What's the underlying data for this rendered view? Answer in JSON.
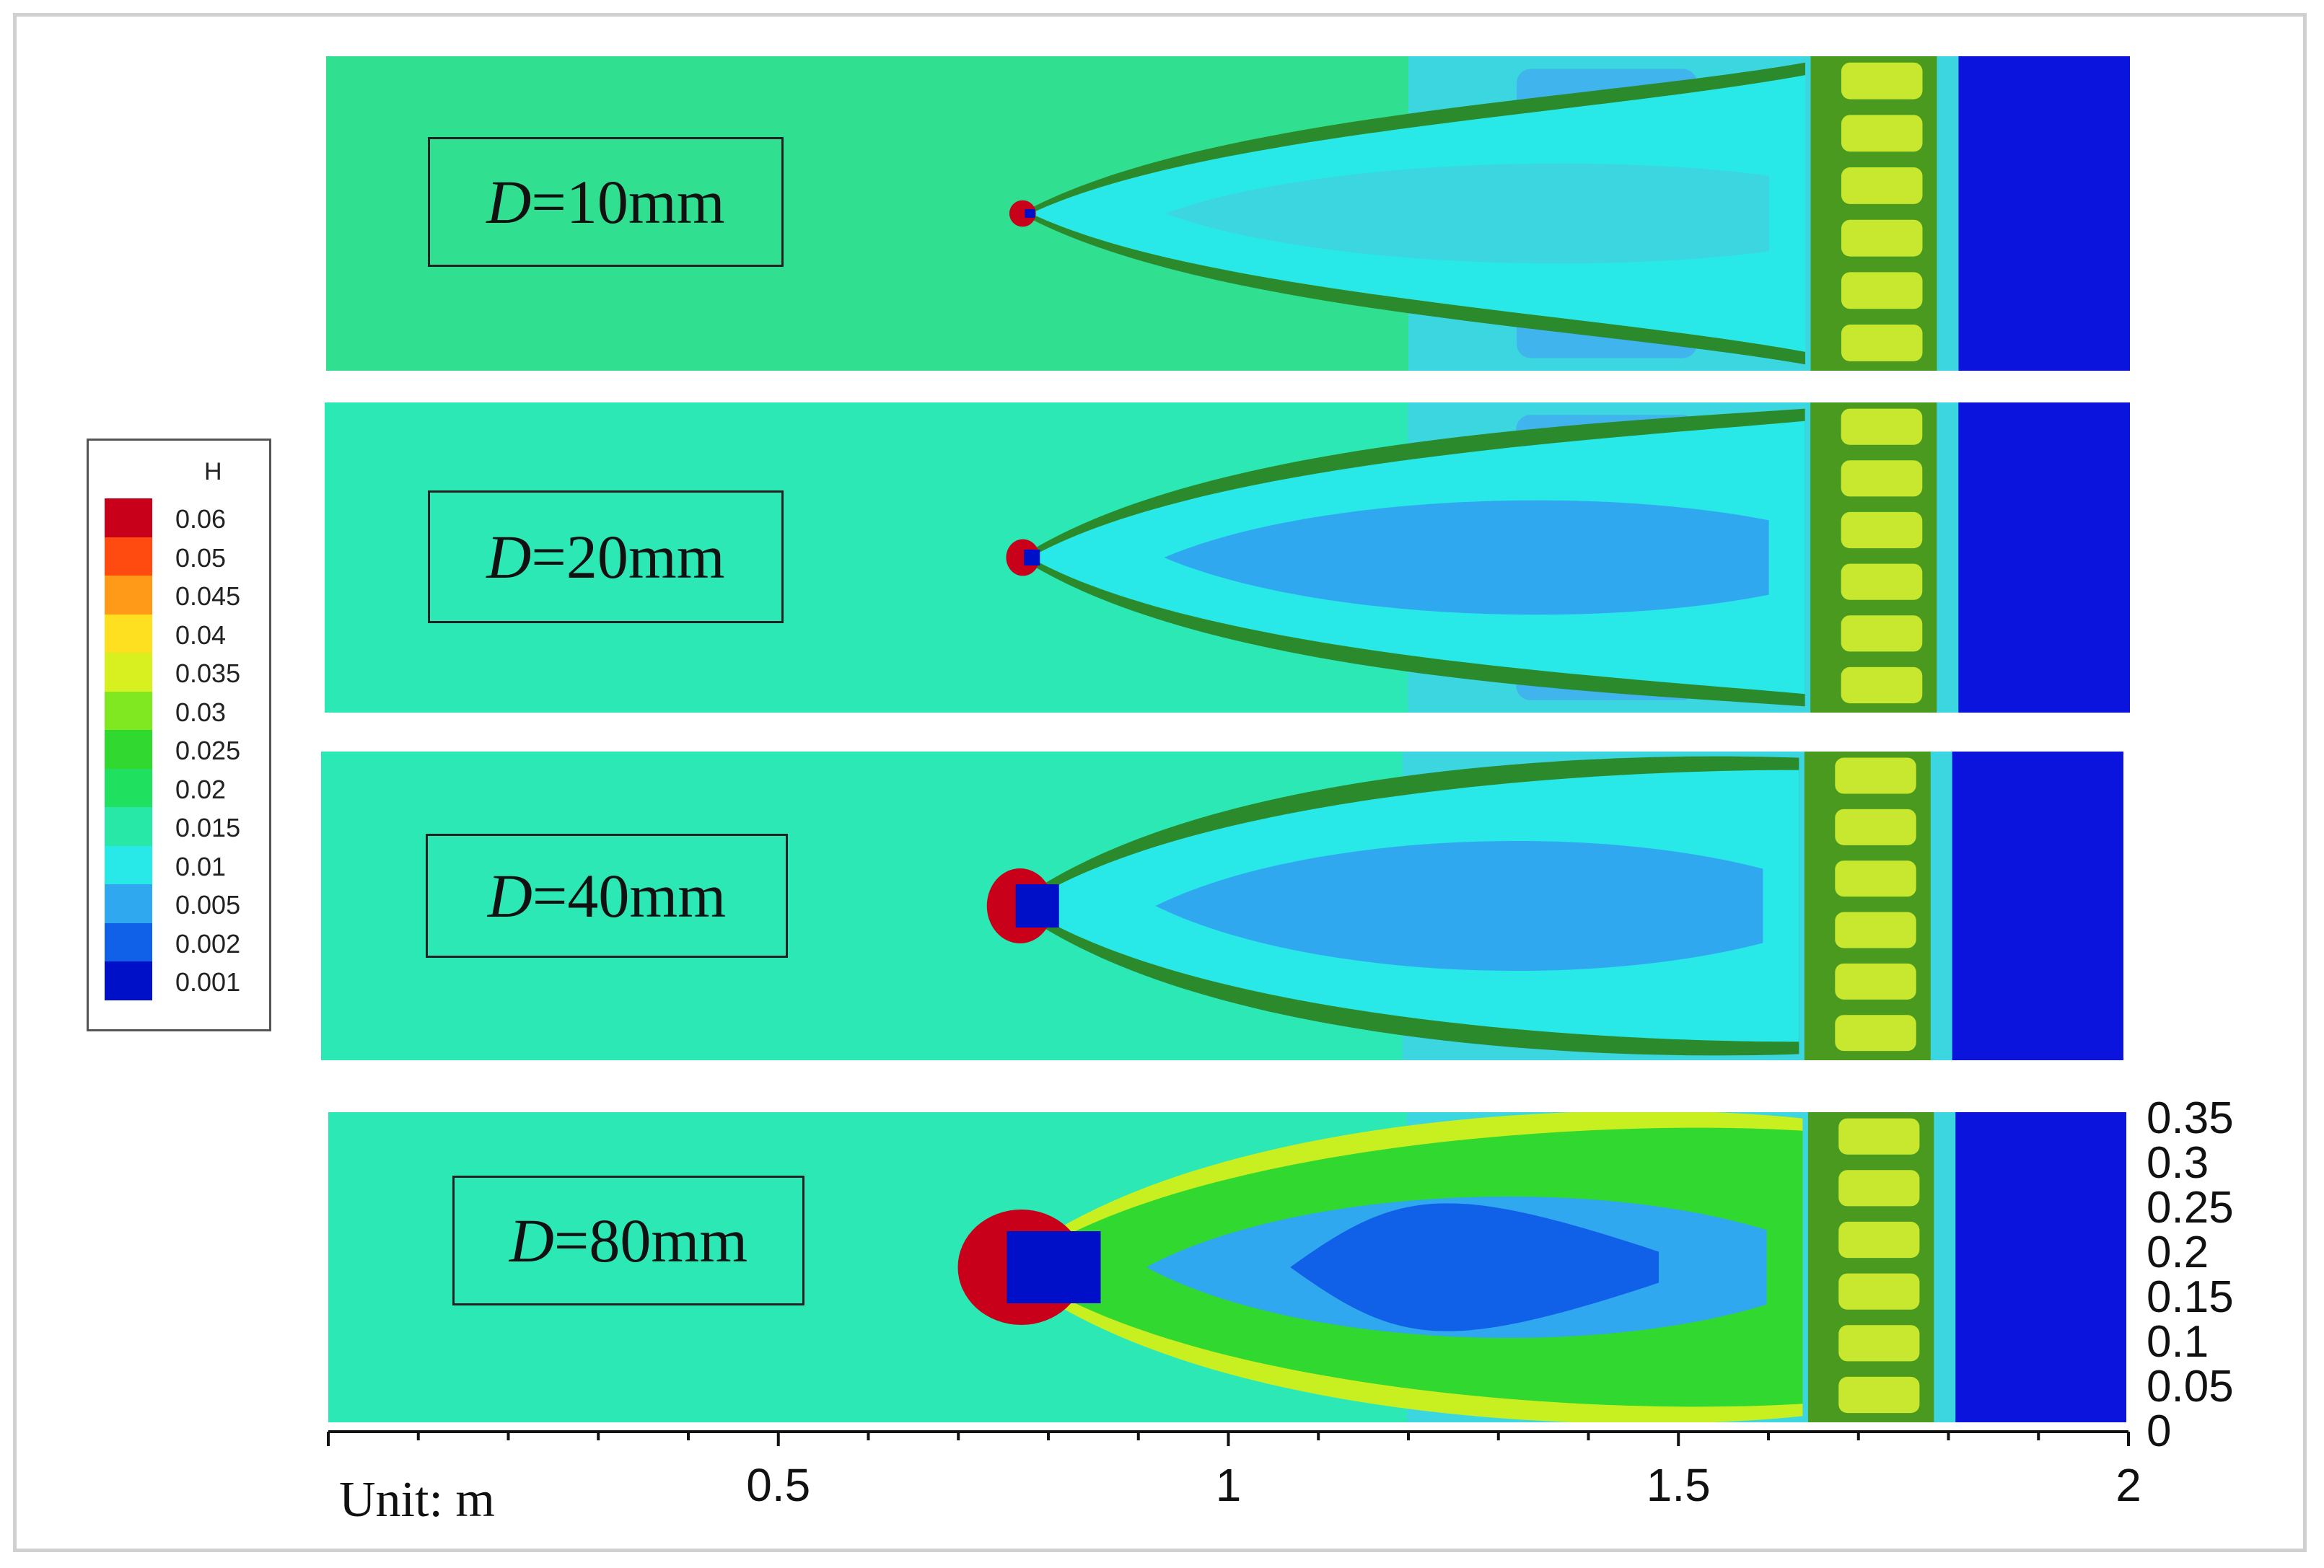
{
  "chart_data": {
    "type": "heatmap",
    "title": "",
    "colorbar": {
      "title": "H",
      "labels": [
        "0.06",
        "0.05",
        "0.045",
        "0.04",
        "0.035",
        "0.03",
        "0.025",
        "0.02",
        "0.015",
        "0.01",
        "0.005",
        "0.002",
        "0.001"
      ],
      "colors": [
        "#c8001a",
        "#ff4a10",
        "#ff9a18",
        "#ffe020",
        "#d8f020",
        "#80e820",
        "#30d830",
        "#20e060",
        "#28e8a8",
        "#28e8e8",
        "#30a8f0",
        "#1060e8",
        "#0010c8"
      ]
    },
    "panels": [
      {
        "label_prefix": "D",
        "label_value": "=10mm",
        "diameter_mm": 10
      },
      {
        "label_prefix": "D",
        "label_value": "=20mm",
        "diameter_mm": 20
      },
      {
        "label_prefix": "D",
        "label_value": "=40mm",
        "diameter_mm": 40
      },
      {
        "label_prefix": "D",
        "label_value": "=80mm",
        "diameter_mm": 80
      }
    ],
    "x_axis": {
      "range": [
        0,
        2
      ],
      "tick_labels": [
        "0.5",
        "1",
        "1.5",
        "2"
      ],
      "tick_values": [
        0.5,
        1,
        1.5,
        2
      ],
      "minor_step": 0.1
    },
    "y_axis": {
      "range": [
        0,
        0.35
      ],
      "tick_labels": [
        "0.35",
        "0.3",
        "0.25",
        "0.2",
        "0.15",
        "0.1",
        "0.05",
        "0"
      ],
      "tick_values": [
        0.35,
        0.3,
        0.25,
        0.2,
        0.15,
        0.1,
        0.05,
        0
      ]
    },
    "unit_label": "Unit: m"
  }
}
